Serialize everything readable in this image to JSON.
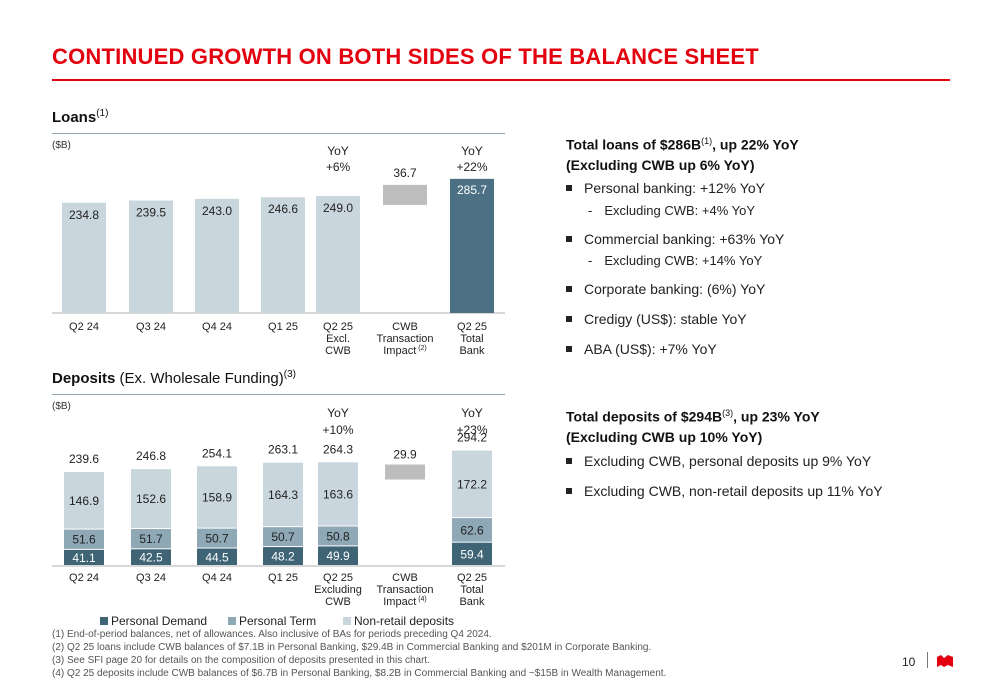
{
  "title": "CONTINUED GROWTH ON BOTH SIDES OF THE BALANCE SHEET",
  "loans": {
    "heading_bold": "Loans",
    "heading_sup": "(1)",
    "unit": "($B)"
  },
  "deposits": {
    "heading_bold": "Deposits",
    "heading_rest": " (Ex. Wholesale Funding)",
    "heading_sup": "(3)",
    "unit": "($B)"
  },
  "colors": {
    "brand_red": "#e3000f",
    "bar_light": "#c9d6dd",
    "bar_dark": "#4d7184",
    "personal_demand": "#3e6475",
    "personal_term": "#8fa8b6",
    "non_retail": "#c9d6dd",
    "impact": "#bdbdbd"
  },
  "chart_data": [
    {
      "type": "bar",
      "name": "Loans",
      "categories": [
        "Q2 24",
        "Q3 24",
        "Q4 24",
        "Q1 25",
        "Q2 25 Excl. CWB",
        "CWB Transaction Impact (2)",
        "Q2 25 Total Bank"
      ],
      "category_lines": [
        [
          "Q2 24"
        ],
        [
          "Q3 24"
        ],
        [
          "Q4 24"
        ],
        [
          "Q1 25"
        ],
        [
          "Q2 25",
          "Excl.",
          "CWB"
        ],
        [
          "CWB",
          "Transaction",
          "Impact"
        ],
        [
          "Q2 25",
          "Total",
          "Bank"
        ]
      ],
      "category_sup": [
        "",
        "",
        "",
        "",
        "",
        "(2)",
        ""
      ],
      "values": [
        234.8,
        239.5,
        243.0,
        246.6,
        249.0,
        36.7,
        285.7
      ],
      "labels": [
        "234.8",
        "239.5",
        "243.0",
        "246.6",
        "249.0",
        "36.7",
        "285.7"
      ],
      "bar_kind": [
        "base",
        "base",
        "base",
        "base",
        "base",
        "waterfall",
        "total"
      ],
      "waterfall_base": 249.0,
      "yoy": [
        {
          "category_index": 4,
          "line1": "YoY",
          "line2": "+6%"
        },
        {
          "category_index": 6,
          "line1": "YoY",
          "line2": "+22%"
        }
      ],
      "ylim": [
        0,
        330
      ]
    },
    {
      "type": "bar",
      "name": "Deposits",
      "stacked": true,
      "categories": [
        "Q2 24",
        "Q3 24",
        "Q4 24",
        "Q1 25",
        "Q2 25 Excluding CWB",
        "CWB Transaction Impact (4)",
        "Q2 25 Total Bank"
      ],
      "category_lines": [
        [
          "Q2 24"
        ],
        [
          "Q3 24"
        ],
        [
          "Q4 24"
        ],
        [
          "Q1 25"
        ],
        [
          "Q2 25",
          "Excluding",
          "CWB"
        ],
        [
          "CWB",
          "Transaction",
          "Impact"
        ],
        [
          "Q2 25",
          "Total",
          "Bank"
        ]
      ],
      "category_sup": [
        "",
        "",
        "",
        "",
        "",
        "(4)",
        ""
      ],
      "series": [
        {
          "name": "Personal Demand",
          "values": [
            41.1,
            42.5,
            44.5,
            48.2,
            49.9,
            null,
            59.4
          ]
        },
        {
          "name": "Personal Term",
          "values": [
            51.6,
            51.7,
            50.7,
            50.7,
            50.8,
            null,
            62.6
          ]
        },
        {
          "name": "Non-retail deposits",
          "values": [
            146.9,
            152.6,
            158.9,
            164.3,
            163.6,
            null,
            172.2
          ]
        }
      ],
      "totals": [
        239.6,
        246.8,
        254.1,
        263.1,
        264.3,
        29.9,
        294.2
      ],
      "total_labels": [
        "239.6",
        "246.8",
        "254.1",
        "263.1",
        "264.3",
        "29.9",
        "294.2"
      ],
      "series_labels": [
        [
          "41.1",
          "42.5",
          "44.5",
          "48.2",
          "49.9",
          "",
          "59.4"
        ],
        [
          "51.6",
          "51.7",
          "50.7",
          "50.7",
          "50.8",
          "",
          "62.6"
        ],
        [
          "146.9",
          "152.6",
          "158.9",
          "164.3",
          "163.6",
          "",
          "172.2"
        ]
      ],
      "waterfall": {
        "category_index": 5,
        "base": 264.3,
        "value": 29.9
      },
      "yoy": [
        {
          "category_index": 4,
          "line1": "YoY",
          "line2": "+10%"
        },
        {
          "category_index": 6,
          "line1": "YoY",
          "line2": "+23%"
        }
      ],
      "legend": "bottom",
      "ylim": [
        0,
        310
      ]
    }
  ],
  "right_panel": {
    "loans_head_1": "Total loans of $286B",
    "loans_head_sup": "(1)",
    "loans_head_2": ", up 22% YoY",
    "loans_head_3": "(Excluding CWB up 6% YoY)",
    "loan_bullets": [
      "Personal banking: +12% YoY",
      "Commercial banking: +63% YoY",
      "Corporate banking: (6%) YoY",
      "Credigy (US$): stable YoY",
      "ABA (US$): +7% YoY"
    ],
    "loan_subs": [
      "Excluding CWB: +4% YoY",
      "Excluding CWB: +14% YoY"
    ],
    "dep_head_1": "Total deposits of $294B",
    "dep_head_sup": "(3)",
    "dep_head_2": ", up 23% YoY",
    "dep_head_3": "(Excluding CWB up 10% YoY)",
    "dep_bullets": [
      "Excluding CWB, personal deposits up 9% YoY",
      "Excluding CWB, non-retail deposits up 11% YoY"
    ]
  },
  "footnotes": [
    "(1)  End-of-period balances, net of allowances. Also inclusive of BAs for periods preceding Q4 2024.",
    "(2)  Q2 25 loans include CWB balances of $7.1B in Personal Banking, $29.4B in Commercial Banking and $201M in Corporate Banking.",
    "(3)  See SFI page 20 for details on the composition of deposits presented in this chart.",
    "(4)  Q2 25 deposits include CWB balances of $6.7B in Personal Banking, $8.2B in Commercial Banking and ~$15B in Wealth Management."
  ],
  "page_number": "10"
}
